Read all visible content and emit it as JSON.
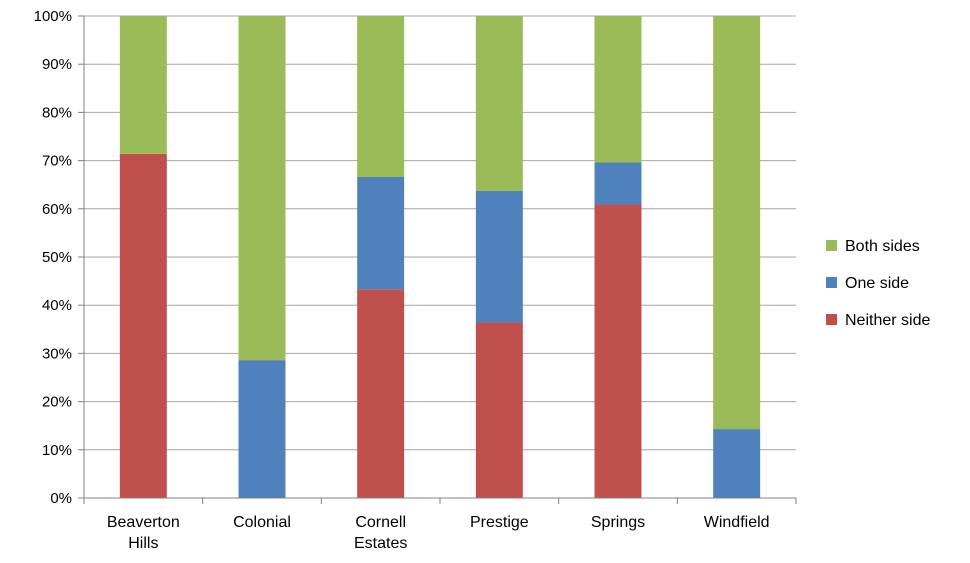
{
  "chart_data": {
    "type": "bar",
    "stacked": true,
    "percent": true,
    "categories": [
      [
        "Beaverton",
        "Hills"
      ],
      [
        "Colonial"
      ],
      [
        "Cornell",
        "Estates"
      ],
      [
        "Prestige"
      ],
      [
        "Springs"
      ],
      [
        "Windfield"
      ]
    ],
    "series": [
      {
        "name": "Neither side",
        "color": "#c0504d",
        "values": [
          71.4,
          0,
          43.3,
          36.4,
          60.9,
          0
        ]
      },
      {
        "name": "One side",
        "color": "#4f81bd",
        "values": [
          0,
          28.6,
          23.3,
          27.3,
          8.7,
          14.3
        ]
      },
      {
        "name": "Both sides",
        "color": "#9bbb59",
        "values": [
          28.6,
          71.4,
          33.4,
          36.3,
          30.4,
          85.7
        ]
      }
    ],
    "ylim": [
      0,
      100
    ],
    "yticks": [
      "0%",
      "10%",
      "20%",
      "30%",
      "40%",
      "50%",
      "60%",
      "70%",
      "80%",
      "90%",
      "100%"
    ],
    "grid": true,
    "legend": "right",
    "legend_order": [
      "Both sides",
      "One side",
      "Neither side"
    ]
  }
}
